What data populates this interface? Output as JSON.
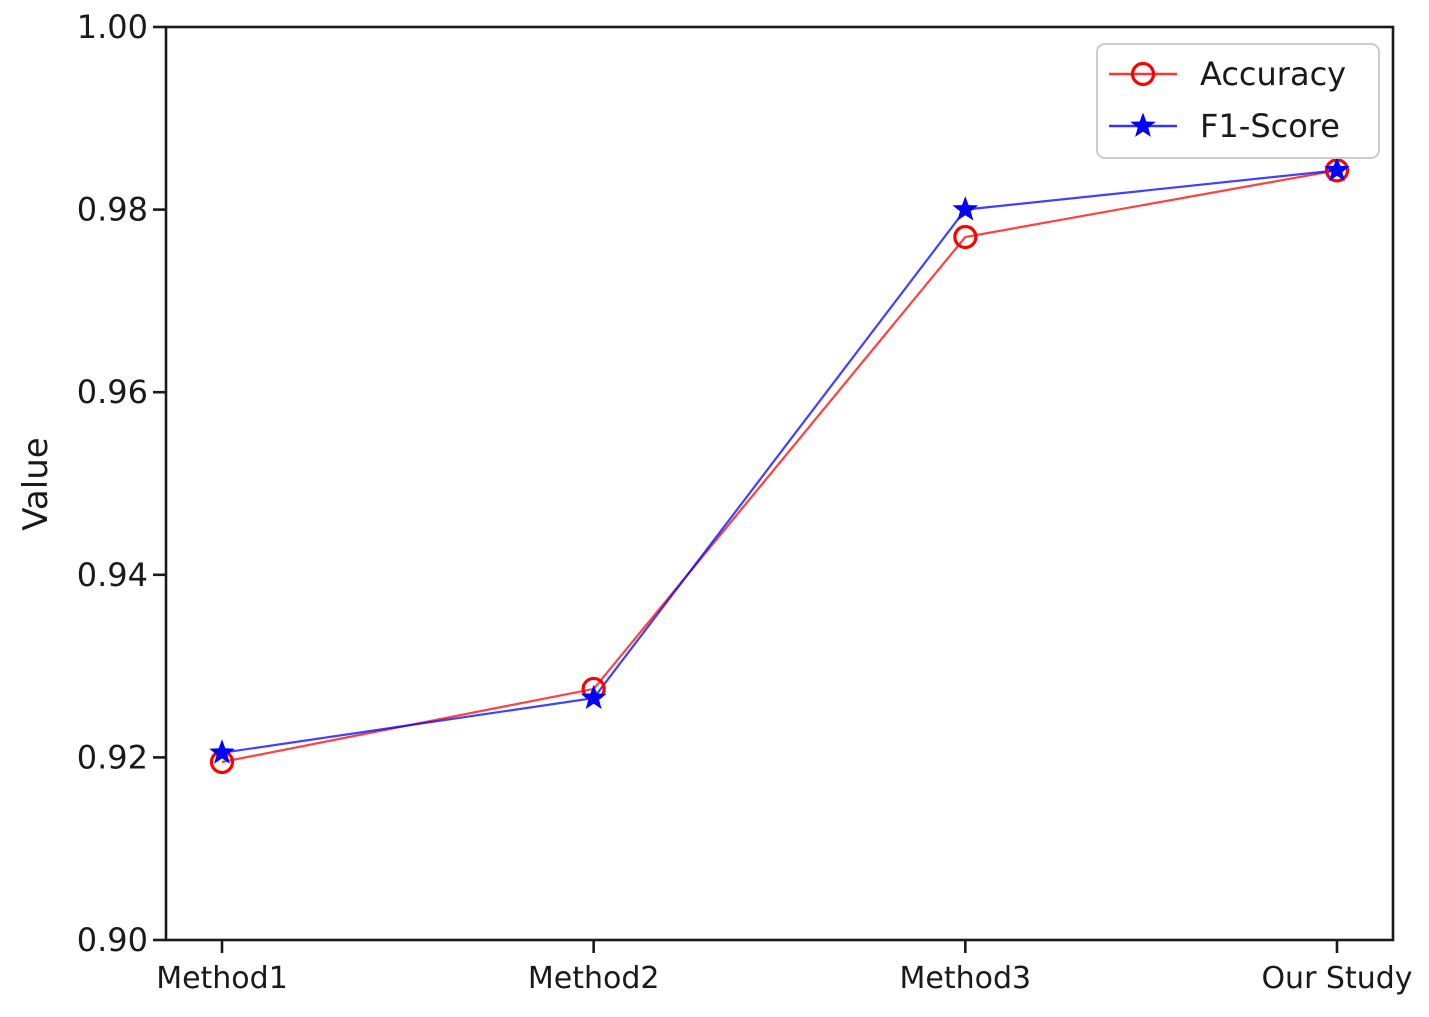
{
  "chart_data": {
    "type": "line",
    "categories": [
      "Method1",
      "Method2",
      "Method3",
      "Our Study"
    ],
    "series": [
      {
        "name": "Accuracy",
        "color": "#ff0000",
        "marker": "circle-open",
        "values": [
          0.9195,
          0.9275,
          0.977,
          0.9843
        ]
      },
      {
        "name": "F1-Score",
        "color": "#0000ff",
        "marker": "star",
        "values": [
          0.9205,
          0.9265,
          0.98,
          0.9843
        ]
      }
    ],
    "title": "",
    "xlabel": "",
    "ylabel": "Value",
    "ylim": [
      0.9,
      1.0
    ],
    "yticks": [
      0.9,
      0.92,
      0.94,
      0.96,
      0.98,
      1.0
    ],
    "ytick_labels": [
      "0.90",
      "0.92",
      "0.94",
      "0.96",
      "0.98",
      "1.00"
    ],
    "grid": false,
    "legend": {
      "position": "upper-right",
      "entries": [
        "Accuracy",
        "F1-Score"
      ]
    }
  },
  "style": {
    "background": "#ffffff",
    "axis_color": "#1a1a1a",
    "text_color": "#1a1a1a",
    "legend_border_color": "#cccccc",
    "legend_background": "#ffffff"
  }
}
